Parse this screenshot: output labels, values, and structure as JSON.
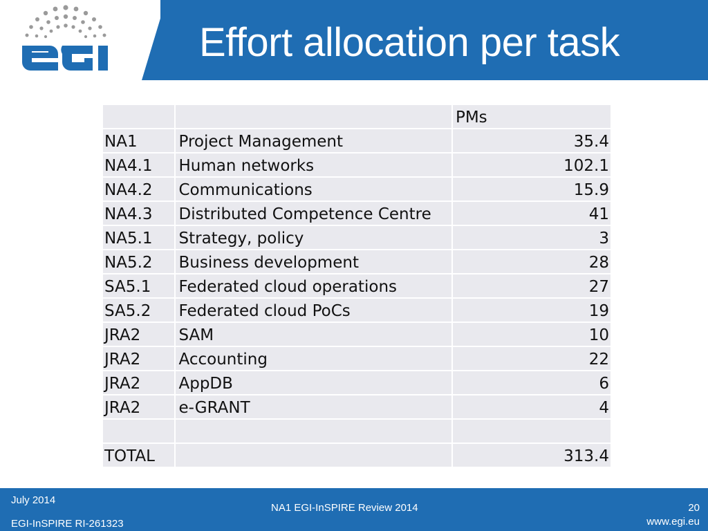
{
  "header": {
    "title": "Effort allocation per task",
    "logo": {
      "text": "egi",
      "icon": "egi-dot-arc-logo",
      "color": "#1f6db3"
    }
  },
  "table": {
    "column_header": "PMs",
    "rows": [
      {
        "id": "NA1",
        "name": "Project Management",
        "pms": "35.4"
      },
      {
        "id": "NA4.1",
        "name": "Human networks",
        "pms": "102.1"
      },
      {
        "id": "NA4.2",
        "name": "Communications",
        "pms": "15.9"
      },
      {
        "id": "NA4.3",
        "name": "Distributed Competence Centre",
        "pms": "41"
      },
      {
        "id": "NA5.1",
        "name": "Strategy, policy",
        "pms": "3"
      },
      {
        "id": "NA5.2",
        "name": "Business development",
        "pms": "28"
      },
      {
        "id": "SA5.1",
        "name": "Federated cloud operations",
        "pms": "27"
      },
      {
        "id": "SA5.2",
        "name": "Federated cloud PoCs",
        "pms": "19"
      },
      {
        "id": "JRA2",
        "name": "SAM",
        "pms": "10"
      },
      {
        "id": "JRA2",
        "name": "Accounting",
        "pms": "22"
      },
      {
        "id": "JRA2",
        "name": "AppDB",
        "pms": "6"
      },
      {
        "id": "JRA2",
        "name": "e-GRANT",
        "pms": "4"
      }
    ],
    "total": {
      "label": "TOTAL",
      "pms": "313.4"
    }
  },
  "footer": {
    "date": "July 2014",
    "project": "EGI-InSPIRE RI-261323",
    "center": "NA1 EGI-InSPIRE Review 2014",
    "page": "20",
    "url": "www.egi.eu"
  },
  "colors": {
    "brand_blue": "#1f6db3",
    "cell_bg": "#e9e9ee"
  }
}
